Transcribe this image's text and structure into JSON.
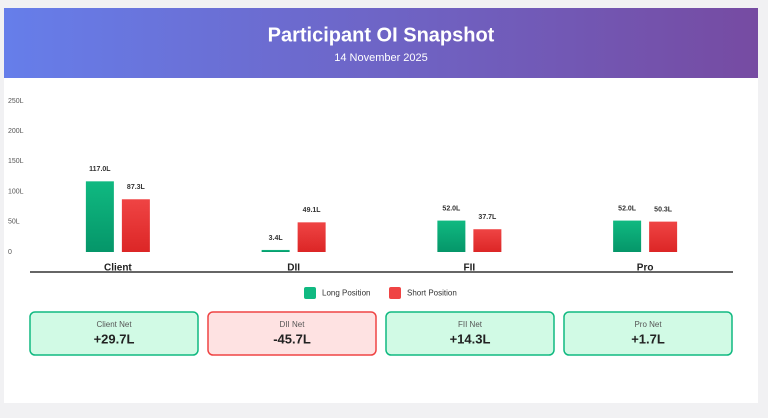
{
  "chart_data": {
    "type": "bar",
    "title": "Participant OI Snapshot",
    "subtitle": "14 November 2025",
    "categories": [
      "Client",
      "DII",
      "FII",
      "Pro"
    ],
    "series": [
      {
        "name": "Long Position",
        "color": "#10b981",
        "values": [
          117.0,
          3.4,
          52.0,
          52.0
        ],
        "value_labels": [
          "117.0L",
          "3.4L",
          "52.0L",
          "52.0L"
        ]
      },
      {
        "name": "Short Position",
        "color": "#ef4444",
        "values": [
          87.3,
          49.1,
          37.7,
          50.3
        ],
        "value_labels": [
          "87.3L",
          "49.1L",
          "37.7L",
          "50.3L"
        ]
      }
    ],
    "ylim": [
      0,
      250
    ],
    "yticks": [
      0,
      {
        "value": 50,
        "label": "50L"
      },
      {
        "value": 100,
        "label": "100L"
      },
      {
        "value": 150,
        "label": "150L"
      },
      {
        "value": 200,
        "label": "200L"
      },
      {
        "value": 250,
        "label": "250L"
      }
    ],
    "grid": false,
    "legend": "bottom"
  },
  "cards": [
    {
      "label": "Client Net",
      "value": "+29.7L",
      "color": "#10b981"
    },
    {
      "label": "DII Net",
      "value": "-45.7L",
      "color": "#ef4444"
    },
    {
      "label": "FII Net",
      "value": "+14.3L",
      "color": "#10b981"
    },
    {
      "label": "Pro Net",
      "value": "+1.7L",
      "color": "#10b981"
    }
  ]
}
